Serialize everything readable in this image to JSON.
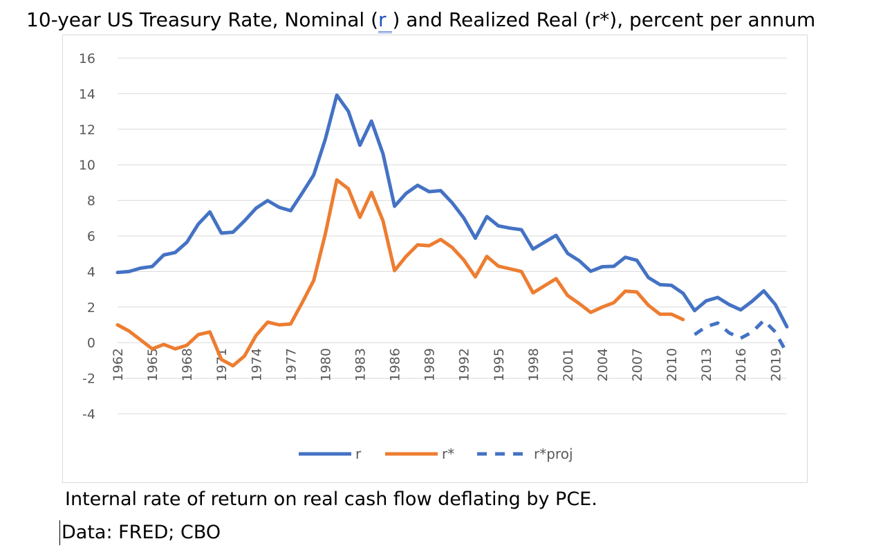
{
  "title": {
    "before": "10-year US Treasury Rate, Nominal (",
    "link": "r ",
    "after": ") and Realized Real (r*), percent per annum"
  },
  "note": "Internal rate of return on real cash flow deflating by PCE.",
  "source": "Data: FRED; CBO",
  "chart_data": {
    "type": "line",
    "title": "10-year US Treasury Rate, Nominal (r ) and Realized Real (r*), percent per annum",
    "ylim": [
      -4,
      16
    ],
    "yticks": [
      -4,
      -2,
      0,
      2,
      4,
      6,
      8,
      10,
      12,
      14,
      16
    ],
    "xlim": [
      1962,
      2020
    ],
    "xticks": [
      "1962",
      "1965",
      "1968",
      "1971",
      "1974",
      "1977",
      "1980",
      "1983",
      "1986",
      "1989",
      "1992",
      "1995",
      "1998",
      "2001",
      "2004",
      "2007",
      "2010",
      "2013",
      "2016",
      "2019"
    ],
    "grid": true,
    "legend": "bottom",
    "series": [
      {
        "name": "r",
        "color": "#4472C4",
        "style": "solid",
        "x": [
          1962,
          1963,
          1964,
          1965,
          1966,
          1967,
          1968,
          1969,
          1970,
          1971,
          1972,
          1973,
          1974,
          1975,
          1976,
          1977,
          1978,
          1979,
          1980,
          1981,
          1982,
          1983,
          1984,
          1985,
          1986,
          1987,
          1988,
          1989,
          1990,
          1991,
          1992,
          1993,
          1994,
          1995,
          1996,
          1997,
          1998,
          1999,
          2000,
          2001,
          2002,
          2003,
          2004,
          2005,
          2006,
          2007,
          2008,
          2009,
          2010,
          2011,
          2012,
          2013,
          2014,
          2015,
          2016,
          2017,
          2018,
          2019,
          2020
        ],
        "values": [
          3.95,
          4.0,
          4.19,
          4.28,
          4.93,
          5.07,
          5.64,
          6.67,
          7.35,
          6.16,
          6.21,
          6.85,
          7.56,
          7.99,
          7.61,
          7.42,
          8.41,
          9.43,
          11.43,
          13.92,
          13.01,
          11.1,
          12.46,
          10.62,
          7.67,
          8.39,
          8.85,
          8.49,
          8.55,
          7.86,
          7.01,
          5.87,
          7.09,
          6.57,
          6.44,
          6.35,
          5.26,
          5.65,
          6.03,
          5.02,
          4.61,
          4.01,
          4.27,
          4.29,
          4.8,
          4.63,
          3.66,
          3.26,
          3.22,
          2.78,
          1.8,
          2.35,
          2.54,
          2.14,
          1.84,
          2.33,
          2.91,
          2.14,
          0.89
        ]
      },
      {
        "name": "r*",
        "color": "#ED7D31",
        "style": "solid",
        "x": [
          1962,
          1963,
          1964,
          1965,
          1966,
          1967,
          1968,
          1969,
          1970,
          1971,
          1972,
          1973,
          1974,
          1975,
          1976,
          1977,
          1978,
          1979,
          1980,
          1981,
          1982,
          1983,
          1984,
          1985,
          1986,
          1987,
          1988,
          1989,
          1990,
          1991,
          1992,
          1993,
          1994,
          1995,
          1996,
          1997,
          1998,
          1999,
          2000,
          2001,
          2002,
          2003,
          2004,
          2005,
          2006,
          2007,
          2008,
          2009,
          2010,
          2011
        ],
        "values": [
          1.0,
          0.65,
          0.15,
          -0.35,
          -0.1,
          -0.35,
          -0.15,
          0.45,
          0.6,
          -0.95,
          -1.3,
          -0.75,
          0.4,
          1.15,
          1.0,
          1.05,
          2.25,
          3.5,
          6.1,
          9.15,
          8.65,
          7.05,
          8.45,
          6.85,
          4.05,
          4.85,
          5.5,
          5.45,
          5.8,
          5.35,
          4.65,
          3.7,
          4.85,
          4.3,
          4.15,
          4.0,
          2.8,
          3.2,
          3.6,
          2.65,
          2.2,
          1.7,
          2.0,
          2.25,
          2.9,
          2.85,
          2.1,
          1.6,
          1.6,
          1.3
        ]
      },
      {
        "name": "r*proj",
        "color": "#4472C4",
        "style": "dashed",
        "x": [
          2012,
          2013,
          2014,
          2015,
          2016,
          2017,
          2018,
          2019,
          2020
        ],
        "values": [
          0.45,
          0.9,
          1.1,
          0.55,
          0.25,
          0.6,
          1.25,
          0.6,
          -0.6
        ]
      }
    ]
  }
}
